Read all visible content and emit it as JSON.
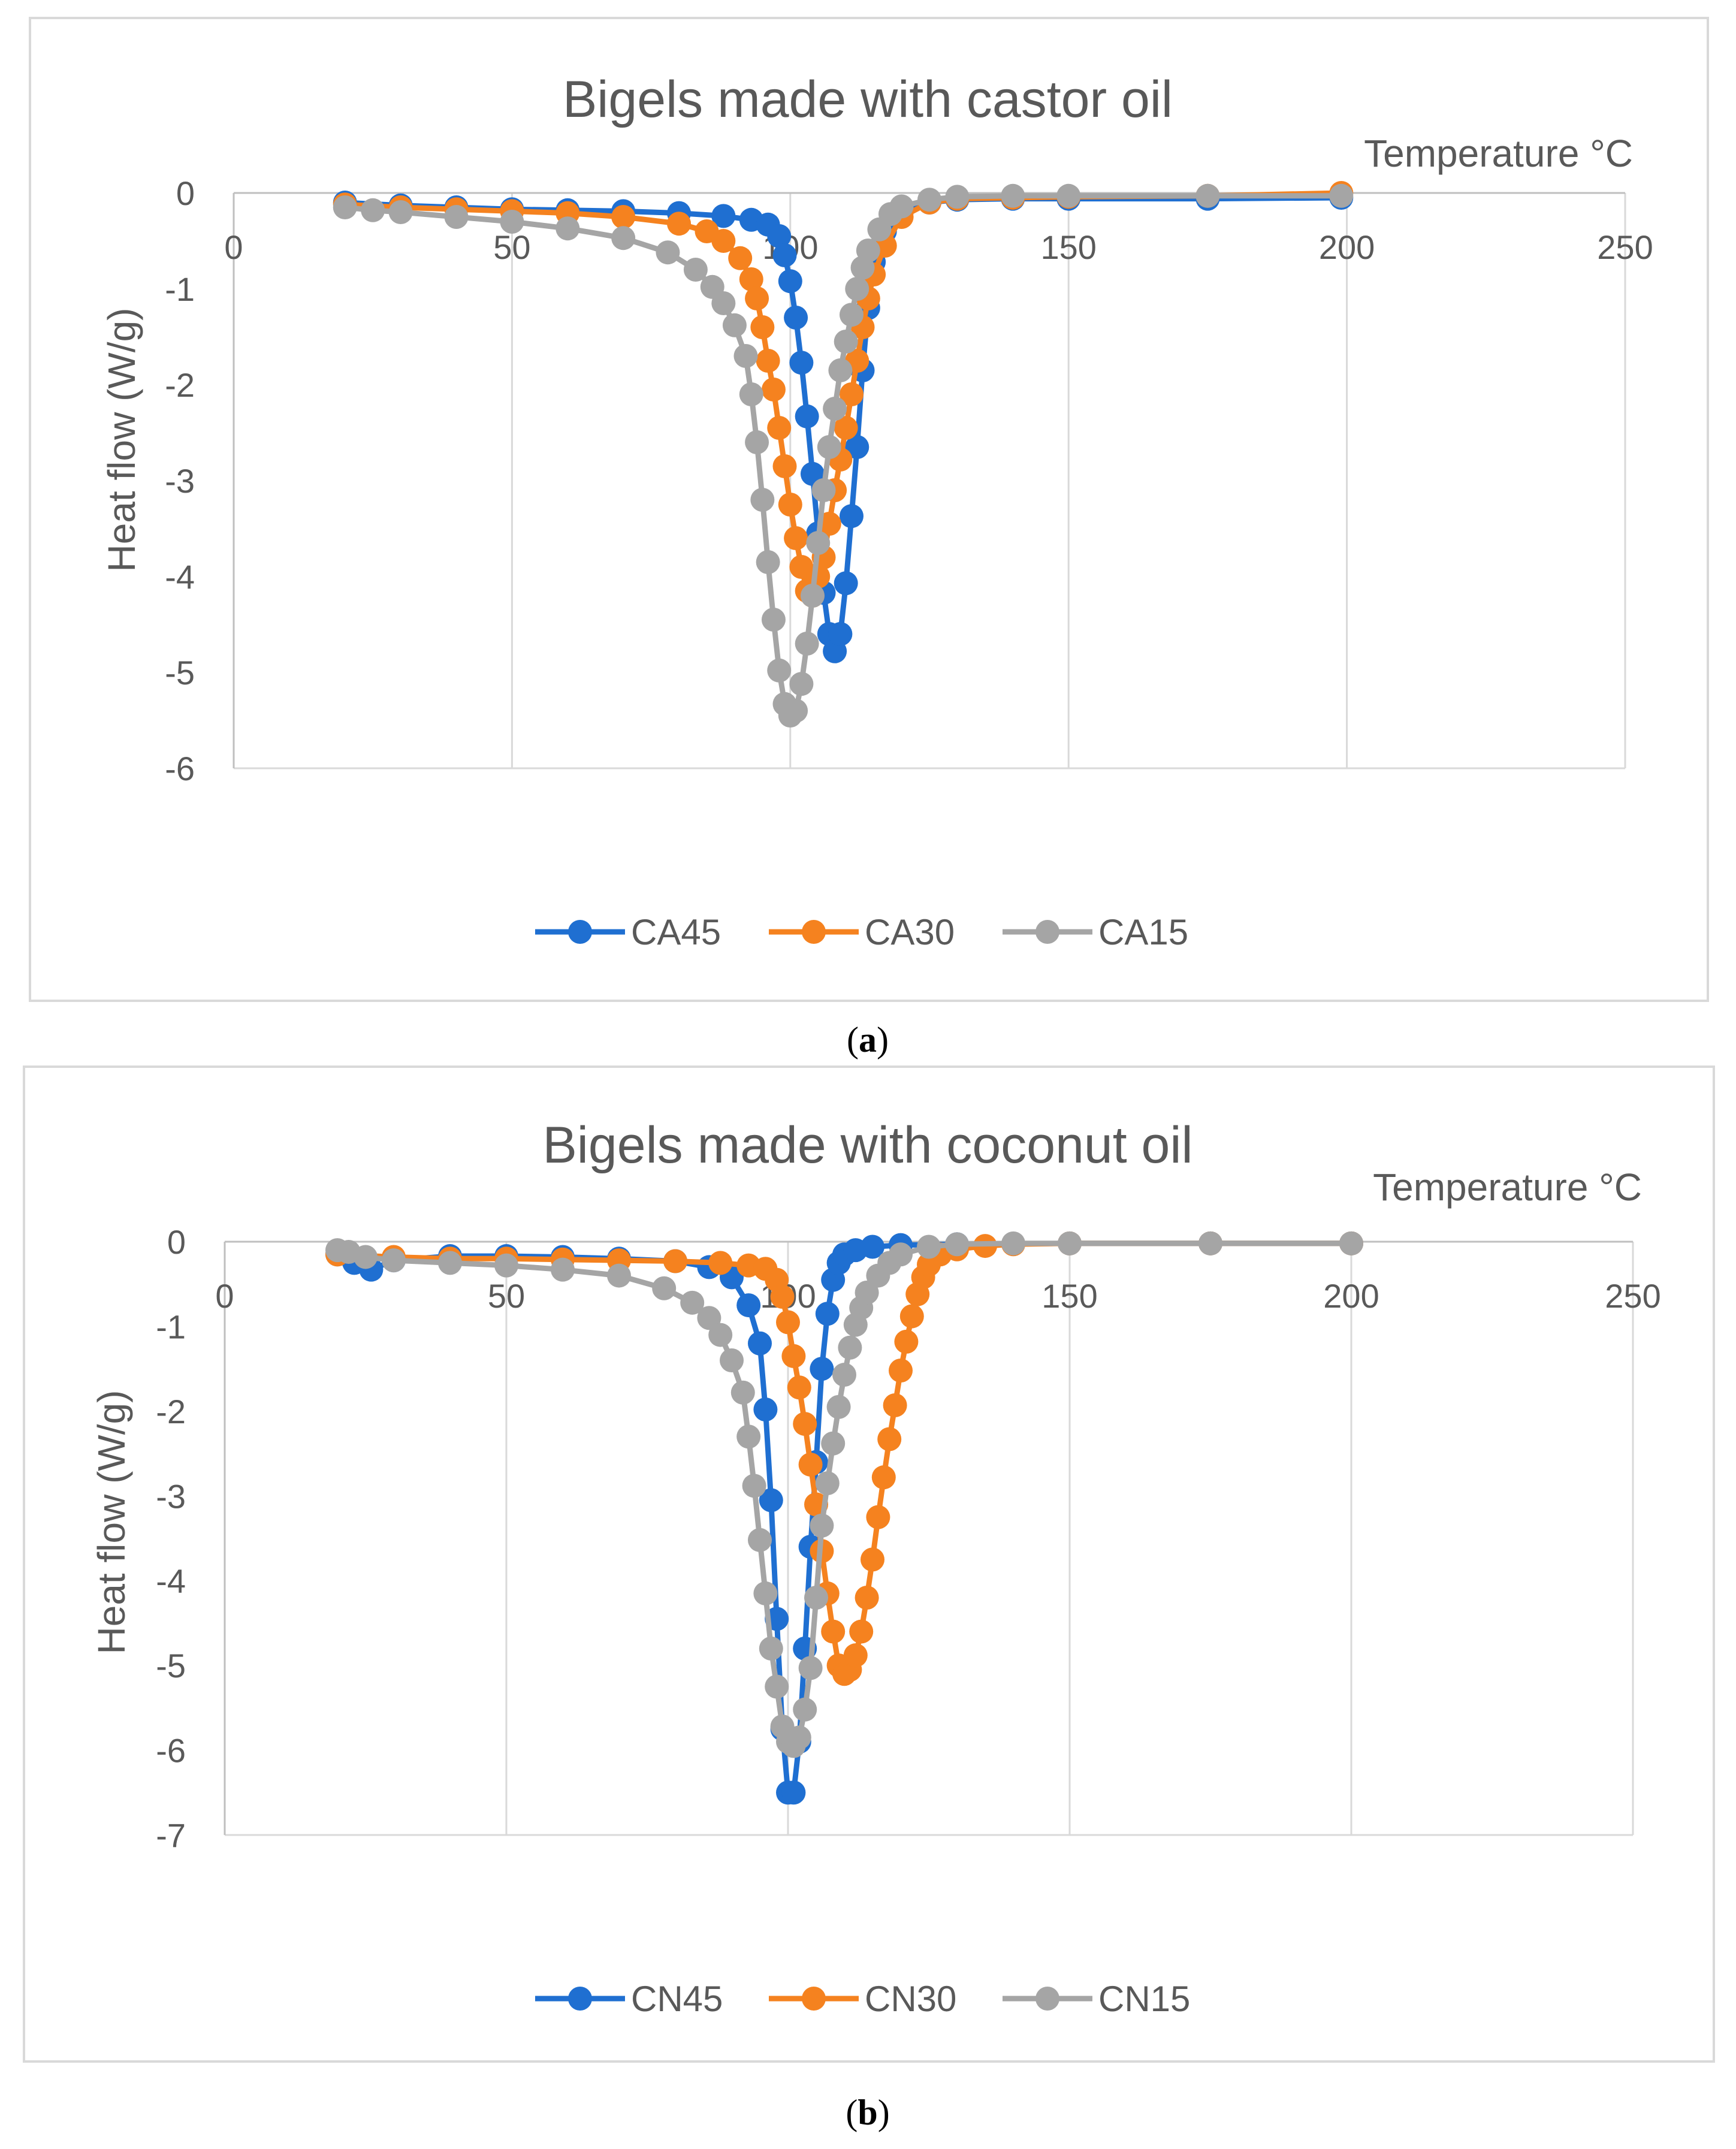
{
  "chart_data": [
    {
      "type": "line",
      "title": "Bigels made with castor oil",
      "xlabel": "Temperature °C",
      "ylabel": "Heat flow (W/g)",
      "caption": "a",
      "xlim": [
        0,
        250
      ],
      "ylim": [
        -6,
        0
      ],
      "x_ticks": [
        0,
        50,
        100,
        150,
        200,
        250
      ],
      "y_ticks": [
        0,
        -1,
        -2,
        -3,
        -4,
        -5,
        -6
      ],
      "grid": "vertical",
      "legend_position": "bottom",
      "series": [
        {
          "name": "CA45",
          "color": "#1F6FD1",
          "x": [
            20,
            30,
            40,
            50,
            60,
            70,
            80,
            88,
            93,
            96,
            98,
            99,
            100,
            101,
            102,
            103,
            104,
            105,
            106,
            107,
            108,
            109,
            110,
            111,
            112,
            113,
            114,
            115,
            117,
            120,
            125,
            130,
            140,
            150,
            175,
            199
          ],
          "y": [
            -0.1,
            -0.13,
            -0.15,
            -0.17,
            -0.18,
            -0.19,
            -0.21,
            -0.24,
            -0.28,
            -0.33,
            -0.45,
            -0.65,
            -0.92,
            -1.3,
            -1.77,
            -2.33,
            -2.93,
            -3.55,
            -4.17,
            -4.6,
            -4.78,
            -4.6,
            -4.07,
            -3.37,
            -2.65,
            -1.85,
            -1.2,
            -0.72,
            -0.4,
            -0.2,
            -0.1,
            -0.07,
            -0.06,
            -0.06,
            -0.06,
            -0.05
          ]
        },
        {
          "name": "CA30",
          "color": "#F5821F",
          "x": [
            20,
            30,
            40,
            50,
            60,
            70,
            80,
            85,
            88,
            91,
            93,
            94,
            95,
            96,
            97,
            98,
            99,
            100,
            101,
            102,
            103,
            104,
            105,
            106,
            107,
            108,
            109,
            110,
            111,
            112,
            113,
            114,
            115,
            117,
            120,
            125,
            130,
            140,
            150,
            175,
            199
          ],
          "y": [
            -0.12,
            -0.15,
            -0.17,
            -0.19,
            -0.21,
            -0.25,
            -0.32,
            -0.4,
            -0.5,
            -0.68,
            -0.9,
            -1.1,
            -1.4,
            -1.75,
            -2.05,
            -2.45,
            -2.85,
            -3.25,
            -3.6,
            -3.9,
            -4.15,
            -4.2,
            -4.0,
            -3.8,
            -3.45,
            -3.1,
            -2.78,
            -2.45,
            -2.1,
            -1.75,
            -1.4,
            -1.1,
            -0.85,
            -0.55,
            -0.25,
            -0.1,
            -0.06,
            -0.05,
            -0.04,
            -0.03,
            0.0
          ]
        },
        {
          "name": "CA15",
          "color": "#A5A5A5",
          "x": [
            20,
            25,
            30,
            40,
            50,
            60,
            70,
            78,
            83,
            86,
            88,
            90,
            92,
            93,
            94,
            95,
            96,
            97,
            98,
            99,
            100,
            101,
            102,
            103,
            104,
            105,
            106,
            107,
            108,
            109,
            110,
            111,
            112,
            113,
            114,
            116,
            118,
            120,
            125,
            130,
            140,
            150,
            175,
            199
          ],
          "y": [
            -0.15,
            -0.18,
            -0.2,
            -0.25,
            -0.3,
            -0.37,
            -0.47,
            -0.62,
            -0.8,
            -0.98,
            -1.15,
            -1.38,
            -1.7,
            -2.1,
            -2.6,
            -3.2,
            -3.85,
            -4.45,
            -4.98,
            -5.33,
            -5.45,
            -5.4,
            -5.12,
            -4.7,
            -4.2,
            -3.65,
            -3.1,
            -2.65,
            -2.25,
            -1.85,
            -1.55,
            -1.27,
            -1.0,
            -0.78,
            -0.6,
            -0.38,
            -0.22,
            -0.14,
            -0.07,
            -0.04,
            -0.03,
            -0.03,
            -0.03,
            -0.03
          ]
        }
      ]
    },
    {
      "type": "line",
      "title": "Bigels made with coconut oil",
      "xlabel": "Temperature °C",
      "ylabel": "Heat flow (W/g)",
      "caption": "b",
      "xlim": [
        0,
        250
      ],
      "ylim": [
        -7,
        0
      ],
      "x_ticks": [
        0,
        50,
        100,
        150,
        200,
        250
      ],
      "y_ticks": [
        0,
        -1,
        -2,
        -3,
        -4,
        -5,
        -6,
        -7
      ],
      "grid": "vertical",
      "legend_position": "bottom",
      "series": [
        {
          "name": "CN45",
          "color": "#1F6FD1",
          "x": [
            20,
            23,
            26,
            30,
            40,
            50,
            60,
            70,
            80,
            86,
            90,
            93,
            95,
            96,
            97,
            98,
            99,
            100,
            101,
            102,
            103,
            104,
            105,
            106,
            107,
            108,
            109,
            110,
            112,
            115,
            120,
            130,
            150,
            175,
            200
          ],
          "y": [
            -0.15,
            -0.25,
            -0.33,
            -0.22,
            -0.17,
            -0.17,
            -0.18,
            -0.2,
            -0.23,
            -0.3,
            -0.42,
            -0.75,
            -1.2,
            -1.98,
            -3.05,
            -4.45,
            -5.75,
            -6.5,
            -6.5,
            -5.9,
            -4.8,
            -3.6,
            -2.6,
            -1.5,
            -0.85,
            -0.45,
            -0.25,
            -0.15,
            -0.1,
            -0.06,
            -0.04,
            -0.03,
            -0.02,
            -0.02,
            -0.02
          ]
        },
        {
          "name": "CN30",
          "color": "#F5821F",
          "x": [
            20,
            30,
            40,
            50,
            60,
            70,
            80,
            88,
            93,
            96,
            98,
            99,
            100,
            101,
            102,
            103,
            104,
            105,
            106,
            107,
            108,
            109,
            110,
            111,
            112,
            113,
            114,
            115,
            116,
            117,
            118,
            119,
            120,
            121,
            122,
            123,
            124,
            125,
            127,
            130,
            135,
            140,
            150,
            175,
            200
          ],
          "y": [
            -0.15,
            -0.18,
            -0.2,
            -0.2,
            -0.21,
            -0.22,
            -0.23,
            -0.25,
            -0.28,
            -0.32,
            -0.45,
            -0.65,
            -0.95,
            -1.35,
            -1.72,
            -2.15,
            -2.63,
            -3.1,
            -3.65,
            -4.15,
            -4.6,
            -5.0,
            -5.1,
            -5.05,
            -4.88,
            -4.6,
            -4.2,
            -3.75,
            -3.25,
            -2.78,
            -2.33,
            -1.93,
            -1.52,
            -1.18,
            -0.88,
            -0.62,
            -0.42,
            -0.27,
            -0.15,
            -0.09,
            -0.05,
            -0.03,
            -0.02,
            -0.02,
            -0.02
          ]
        },
        {
          "name": "CN15",
          "color": "#A5A5A5",
          "x": [
            20,
            22,
            25,
            30,
            40,
            50,
            60,
            70,
            78,
            83,
            86,
            88,
            90,
            92,
            93,
            94,
            95,
            96,
            97,
            98,
            99,
            100,
            101,
            102,
            103,
            104,
            105,
            106,
            107,
            108,
            109,
            110,
            111,
            112,
            113,
            114,
            116,
            118,
            120,
            125,
            130,
            140,
            150,
            175,
            200
          ],
          "y": [
            -0.1,
            -0.12,
            -0.18,
            -0.22,
            -0.25,
            -0.28,
            -0.33,
            -0.4,
            -0.55,
            -0.72,
            -0.9,
            -1.1,
            -1.4,
            -1.78,
            -2.3,
            -2.88,
            -3.52,
            -4.15,
            -4.8,
            -5.25,
            -5.72,
            -5.9,
            -5.95,
            -5.85,
            -5.52,
            -5.03,
            -4.2,
            -3.35,
            -2.85,
            -2.38,
            -1.95,
            -1.57,
            -1.25,
            -0.98,
            -0.78,
            -0.6,
            -0.4,
            -0.25,
            -0.15,
            -0.06,
            -0.03,
            -0.02,
            -0.02,
            -0.02,
            -0.02
          ]
        }
      ]
    }
  ]
}
